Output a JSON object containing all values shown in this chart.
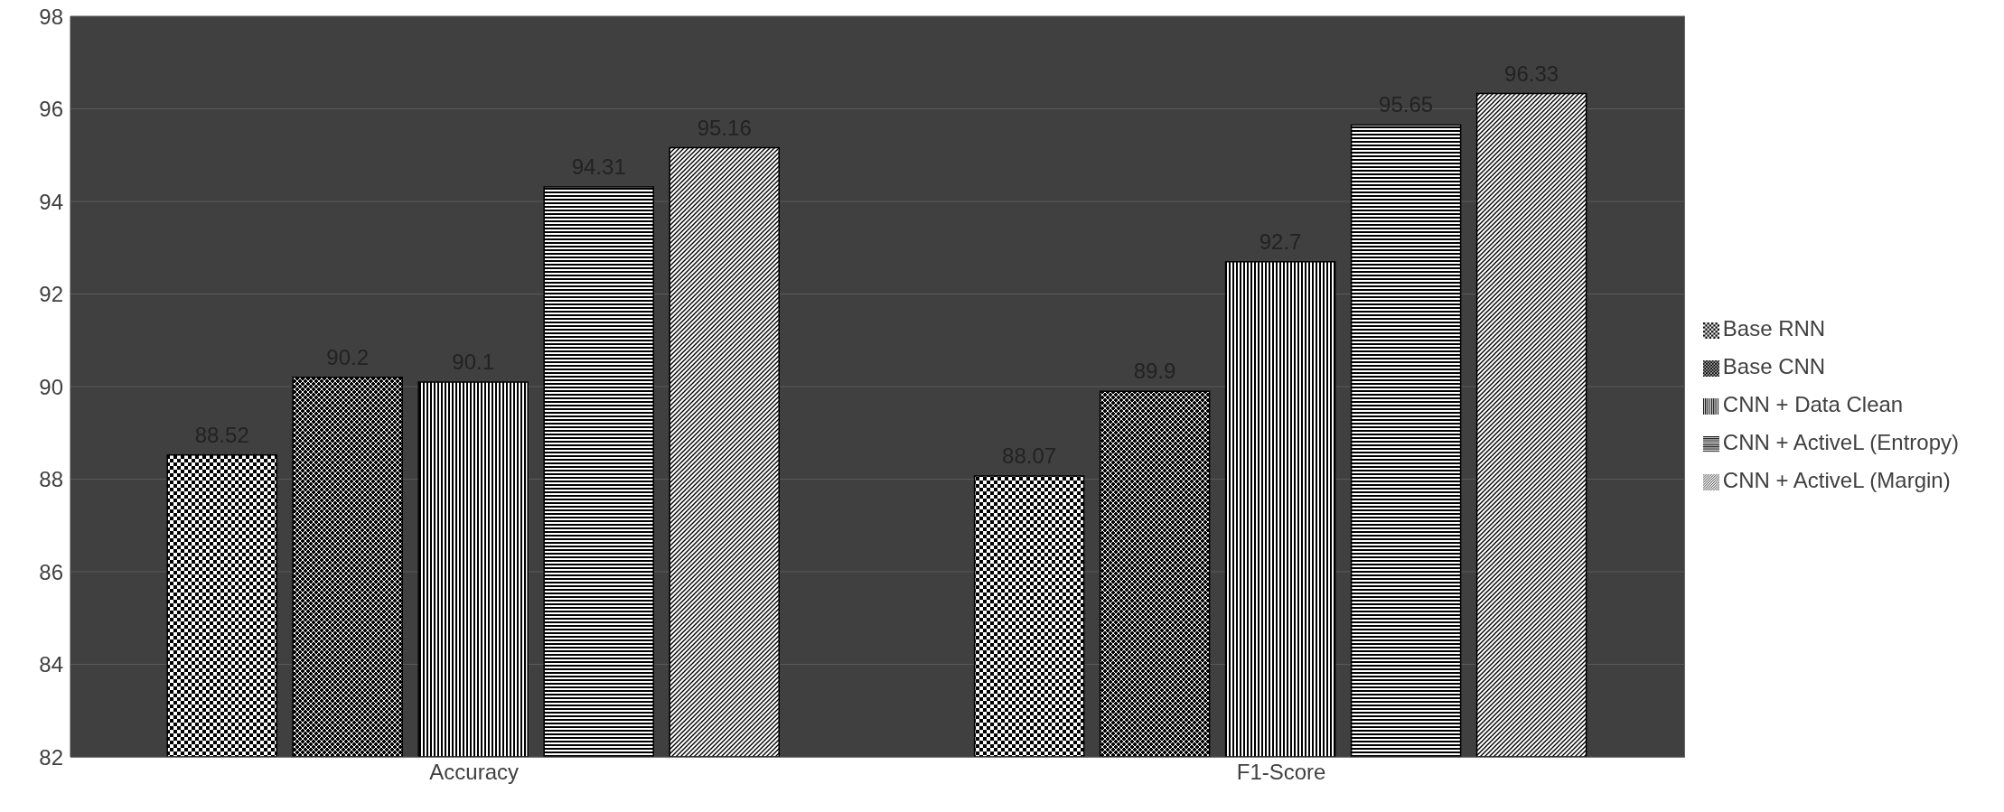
{
  "chart_data": {
    "type": "bar",
    "categories": [
      "Accuracy",
      "F1-Score"
    ],
    "series": [
      {
        "name": "Base RNN",
        "color": "#000000",
        "values": [
          88.52,
          88.07
        ]
      },
      {
        "name": "Base CNN",
        "color": "#000000",
        "values": [
          90.2,
          89.9
        ]
      },
      {
        "name": "CNN + Data Clean",
        "color": "#000000",
        "values": [
          90.1,
          92.7
        ]
      },
      {
        "name": "CNN + ActiveL (Entropy)",
        "color": "#000000",
        "values": [
          94.31,
          95.65
        ]
      },
      {
        "name": "CNN + ActiveL (Margin)",
        "color": "#000000",
        "values": [
          95.16,
          96.33
        ]
      }
    ],
    "ylim": [
      82,
      98
    ],
    "yticks": [
      82,
      84,
      86,
      88,
      90,
      92,
      94,
      96,
      98
    ],
    "grid": "y",
    "legend": "right",
    "data_labels": true
  }
}
